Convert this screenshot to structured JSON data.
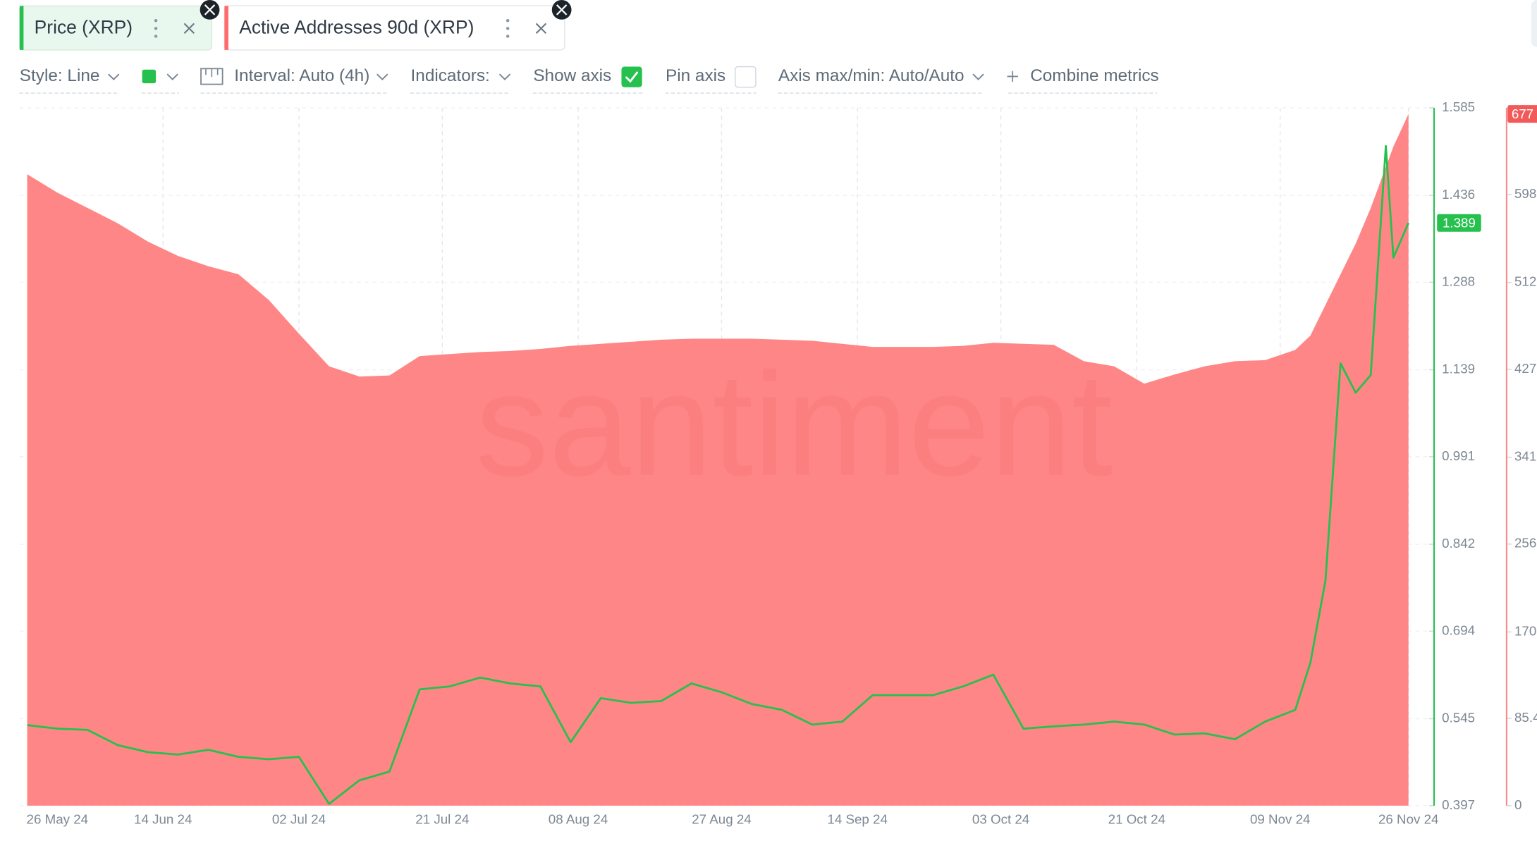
{
  "toolbar": {
    "style": "Style: Line",
    "interval": "Interval: Auto (4h)",
    "indicators": "Indicators:",
    "show_axis": "Show axis",
    "pin_axis": "Pin axis",
    "axis_range": "Axis max/min: Auto/Auto",
    "combine": "Combine metrics"
  },
  "watermark": "santiment",
  "chart_data": {
    "type": "line",
    "x": [
      "2024-05-27",
      "2024-05-31",
      "2024-06-04",
      "2024-06-08",
      "2024-06-12",
      "2024-06-16",
      "2024-06-20",
      "2024-06-24",
      "2024-06-28",
      "2024-07-02",
      "2024-07-06",
      "2024-07-10",
      "2024-07-14",
      "2024-07-18",
      "2024-07-22",
      "2024-07-26",
      "2024-07-30",
      "2024-08-03",
      "2024-08-07",
      "2024-08-11",
      "2024-08-15",
      "2024-08-19",
      "2024-08-23",
      "2024-08-27",
      "2024-08-31",
      "2024-09-04",
      "2024-09-08",
      "2024-09-12",
      "2024-09-16",
      "2024-09-20",
      "2024-09-24",
      "2024-09-28",
      "2024-10-02",
      "2024-10-06",
      "2024-10-10",
      "2024-10-14",
      "2024-10-18",
      "2024-10-22",
      "2024-10-26",
      "2024-10-30",
      "2024-11-03",
      "2024-11-07",
      "2024-11-11",
      "2024-11-13",
      "2024-11-15",
      "2024-11-17",
      "2024-11-19",
      "2024-11-21",
      "2024-11-23",
      "2024-11-24",
      "2024-11-26"
    ],
    "xlim": [
      "2024-05-26",
      "2024-11-29"
    ],
    "xticks": [
      {
        "value": "2024-05-26",
        "label": "26 May 24"
      },
      {
        "value": "2024-06-14",
        "label": "14 Jun 24"
      },
      {
        "value": "2024-07-02",
        "label": "02 Jul 24"
      },
      {
        "value": "2024-07-21",
        "label": "21 Jul 24"
      },
      {
        "value": "2024-08-08",
        "label": "08 Aug 24"
      },
      {
        "value": "2024-08-27",
        "label": "27 Aug 24"
      },
      {
        "value": "2024-09-14",
        "label": "14 Sep 24"
      },
      {
        "value": "2024-10-03",
        "label": "03 Oct 24"
      },
      {
        "value": "2024-10-21",
        "label": "21 Oct 24"
      },
      {
        "value": "2024-11-09",
        "label": "09 Nov 24"
      },
      {
        "value": "2024-11-26",
        "label": "26 Nov 24"
      }
    ],
    "ylim": [
      0.397,
      1.585
    ],
    "yticks": [
      0.397,
      0.545,
      0.694,
      0.842,
      0.991,
      1.139,
      1.288,
      1.436,
      1.585
    ],
    "y2lim": [
      0,
      683
    ],
    "y2ticks": [
      0,
      85.4,
      170,
      256,
      341,
      427,
      512,
      598
    ],
    "grid": true,
    "series": [
      {
        "name": "Price (XRP)",
        "color": "#26c04f",
        "type": "line",
        "values": [
          0.534,
          0.528,
          0.526,
          0.5,
          0.488,
          0.484,
          0.492,
          0.48,
          0.476,
          0.48,
          0.4,
          0.44,
          0.455,
          0.595,
          0.6,
          0.615,
          0.605,
          0.6,
          0.505,
          0.58,
          0.572,
          0.575,
          0.605,
          0.59,
          0.57,
          0.56,
          0.535,
          0.54,
          0.585,
          0.585,
          0.585,
          0.6,
          0.62,
          0.528,
          0.532,
          0.535,
          0.54,
          0.535,
          0.518,
          0.52,
          0.51,
          0.54,
          0.56,
          0.64,
          0.78,
          1.15,
          1.1,
          1.13,
          1.52,
          1.33,
          1.389
        ]
      },
      {
        "name": "Active Addresses 90d (XRP)",
        "color": "#ff8686",
        "type": "area",
        "axis": "y2",
        "values": [
          618,
          600,
          585,
          570,
          552,
          538,
          528,
          520,
          495,
          462,
          430,
          420,
          421,
          440,
          442,
          444,
          445,
          447,
          450,
          452,
          454,
          456,
          457,
          457,
          457,
          456,
          455,
          452,
          449,
          449,
          449,
          450,
          453,
          452,
          451,
          435,
          430,
          413,
          422,
          430,
          435,
          436,
          446,
          460,
          490,
          520,
          550,
          585,
          625,
          645,
          677
        ]
      }
    ]
  }
}
